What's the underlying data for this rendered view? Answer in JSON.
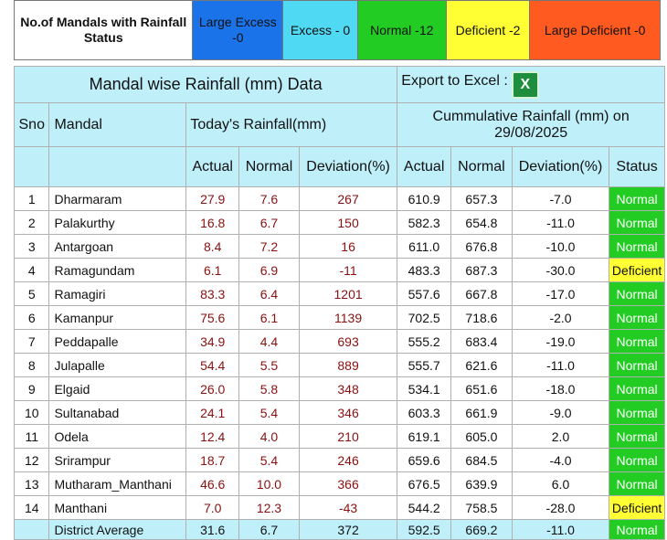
{
  "legend": {
    "title": "No.of Mandals with Rainfall Status",
    "large_excess": "Large Excess -0",
    "excess": "Excess - 0",
    "normal": "Normal -12",
    "deficient": "Deficient -2",
    "large_deficient": "Large Deficient -0"
  },
  "colors": {
    "large_excess": "#1a73e8",
    "excess": "#4fd9f3",
    "normal": "#22cc22",
    "deficient": "#ffff33",
    "large_deficient": "#ff5a1f",
    "header_bg": "#bff0f9"
  },
  "header": {
    "title": "Mandal wise Rainfall (mm) Data",
    "export_label": "Export to Excel :",
    "excel_icon": "excel-icon",
    "sno": "Sno",
    "mandal": "Mandal",
    "todays_rainfall": "Today's Rainfall(mm)",
    "cumulative": "Cummulative Rainfall (mm) on 29/08/2025",
    "actual": "Actual",
    "normal": "Normal",
    "deviation": "Deviation(%)",
    "status": "Status"
  },
  "rows": [
    {
      "sno": "1",
      "mandal": "Dharmaram",
      "t_actual": "27.9",
      "t_normal": "7.6",
      "t_dev": "267",
      "c_actual": "610.9",
      "c_normal": "657.3",
      "c_dev": "-7.0",
      "status": "Normal"
    },
    {
      "sno": "2",
      "mandal": "Palakurthy",
      "t_actual": "16.8",
      "t_normal": "6.7",
      "t_dev": "150",
      "c_actual": "582.3",
      "c_normal": "654.8",
      "c_dev": "-11.0",
      "status": "Normal"
    },
    {
      "sno": "3",
      "mandal": "Antargoan",
      "t_actual": "8.4",
      "t_normal": "7.2",
      "t_dev": "16",
      "c_actual": "611.0",
      "c_normal": "676.8",
      "c_dev": "-10.0",
      "status": "Normal"
    },
    {
      "sno": "4",
      "mandal": "Ramagundam",
      "t_actual": "6.1",
      "t_normal": "6.9",
      "t_dev": "-11",
      "c_actual": "483.3",
      "c_normal": "687.3",
      "c_dev": "-30.0",
      "status": "Deficient"
    },
    {
      "sno": "5",
      "mandal": "Ramagiri",
      "t_actual": "83.3",
      "t_normal": "6.4",
      "t_dev": "1201",
      "c_actual": "557.6",
      "c_normal": "667.8",
      "c_dev": "-17.0",
      "status": "Normal"
    },
    {
      "sno": "6",
      "mandal": "Kamanpur",
      "t_actual": "75.6",
      "t_normal": "6.1",
      "t_dev": "1139",
      "c_actual": "702.5",
      "c_normal": "718.6",
      "c_dev": "-2.0",
      "status": "Normal"
    },
    {
      "sno": "7",
      "mandal": "Peddapalle",
      "t_actual": "34.9",
      "t_normal": "4.4",
      "t_dev": "693",
      "c_actual": "555.2",
      "c_normal": "683.4",
      "c_dev": "-19.0",
      "status": "Normal"
    },
    {
      "sno": "8",
      "mandal": "Julapalle",
      "t_actual": "54.4",
      "t_normal": "5.5",
      "t_dev": "889",
      "c_actual": "555.7",
      "c_normal": "621.6",
      "c_dev": "-11.0",
      "status": "Normal"
    },
    {
      "sno": "9",
      "mandal": "Elgaid",
      "t_actual": "26.0",
      "t_normal": "5.8",
      "t_dev": "348",
      "c_actual": "534.1",
      "c_normal": "651.6",
      "c_dev": "-18.0",
      "status": "Normal"
    },
    {
      "sno": "10",
      "mandal": "Sultanabad",
      "t_actual": "24.1",
      "t_normal": "5.4",
      "t_dev": "346",
      "c_actual": "603.3",
      "c_normal": "661.9",
      "c_dev": "-9.0",
      "status": "Normal"
    },
    {
      "sno": "11",
      "mandal": "Odela",
      "t_actual": "12.4",
      "t_normal": "4.0",
      "t_dev": "210",
      "c_actual": "619.1",
      "c_normal": "605.0",
      "c_dev": "2.0",
      "status": "Normal"
    },
    {
      "sno": "12",
      "mandal": "Srirampur",
      "t_actual": "18.7",
      "t_normal": "5.4",
      "t_dev": "246",
      "c_actual": "659.6",
      "c_normal": "684.5",
      "c_dev": "-4.0",
      "status": "Normal"
    },
    {
      "sno": "13",
      "mandal": "Mutharam_Manthani",
      "t_actual": "46.6",
      "t_normal": "10.0",
      "t_dev": "366",
      "c_actual": "676.5",
      "c_normal": "639.9",
      "c_dev": "6.0",
      "status": "Normal"
    },
    {
      "sno": "14",
      "mandal": "Manthani",
      "t_actual": "7.0",
      "t_normal": "12.3",
      "t_dev": "-43",
      "c_actual": "544.2",
      "c_normal": "758.5",
      "c_dev": "-28.0",
      "status": "Deficient"
    }
  ],
  "average": {
    "label": "District Average",
    "t_actual": "31.6",
    "t_normal": "6.7",
    "t_dev": "372",
    "c_actual": "592.5",
    "c_normal": "669.2",
    "c_dev": "-11.0",
    "status": "Normal"
  }
}
